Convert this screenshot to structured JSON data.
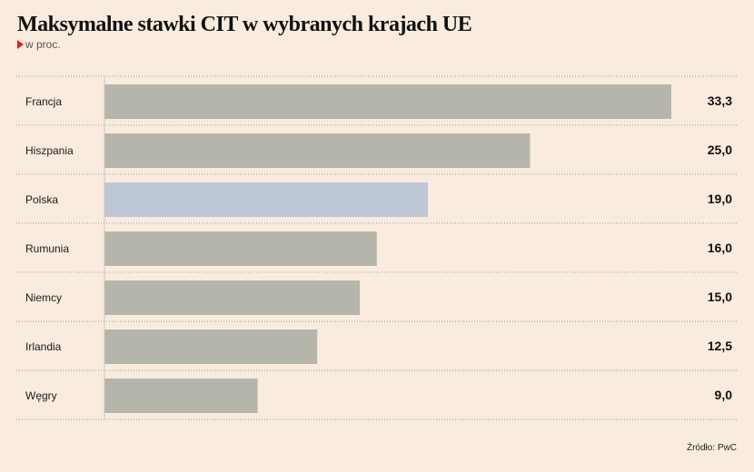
{
  "title": "Maksymalne stawki CIT w wybranych krajach UE",
  "subtitle": "w proc.",
  "source": "Źródło: PwC",
  "colors": {
    "background": "#f9ecdf",
    "bar": "#b6b5ab",
    "highlight": "#bdc7d6",
    "accent": "#e32119",
    "gridline": "#9a9a9a"
  },
  "chart_data": {
    "type": "bar",
    "orientation": "horizontal",
    "categories": [
      "Francja",
      "Hiszpania",
      "Polska",
      "Rumunia",
      "Niemcy",
      "Irlandia",
      "Węgry"
    ],
    "values": [
      33.3,
      25.0,
      19.0,
      16.0,
      15.0,
      12.5,
      9.0
    ],
    "value_labels": [
      "33,3",
      "25,0",
      "19,0",
      "16,0",
      "15,0",
      "12,5",
      "9,0"
    ],
    "highlight_category": "Polska",
    "title": "Maksymalne stawki CIT w wybranych krajach UE",
    "xlim": [
      0,
      33.3
    ],
    "grid": false
  }
}
